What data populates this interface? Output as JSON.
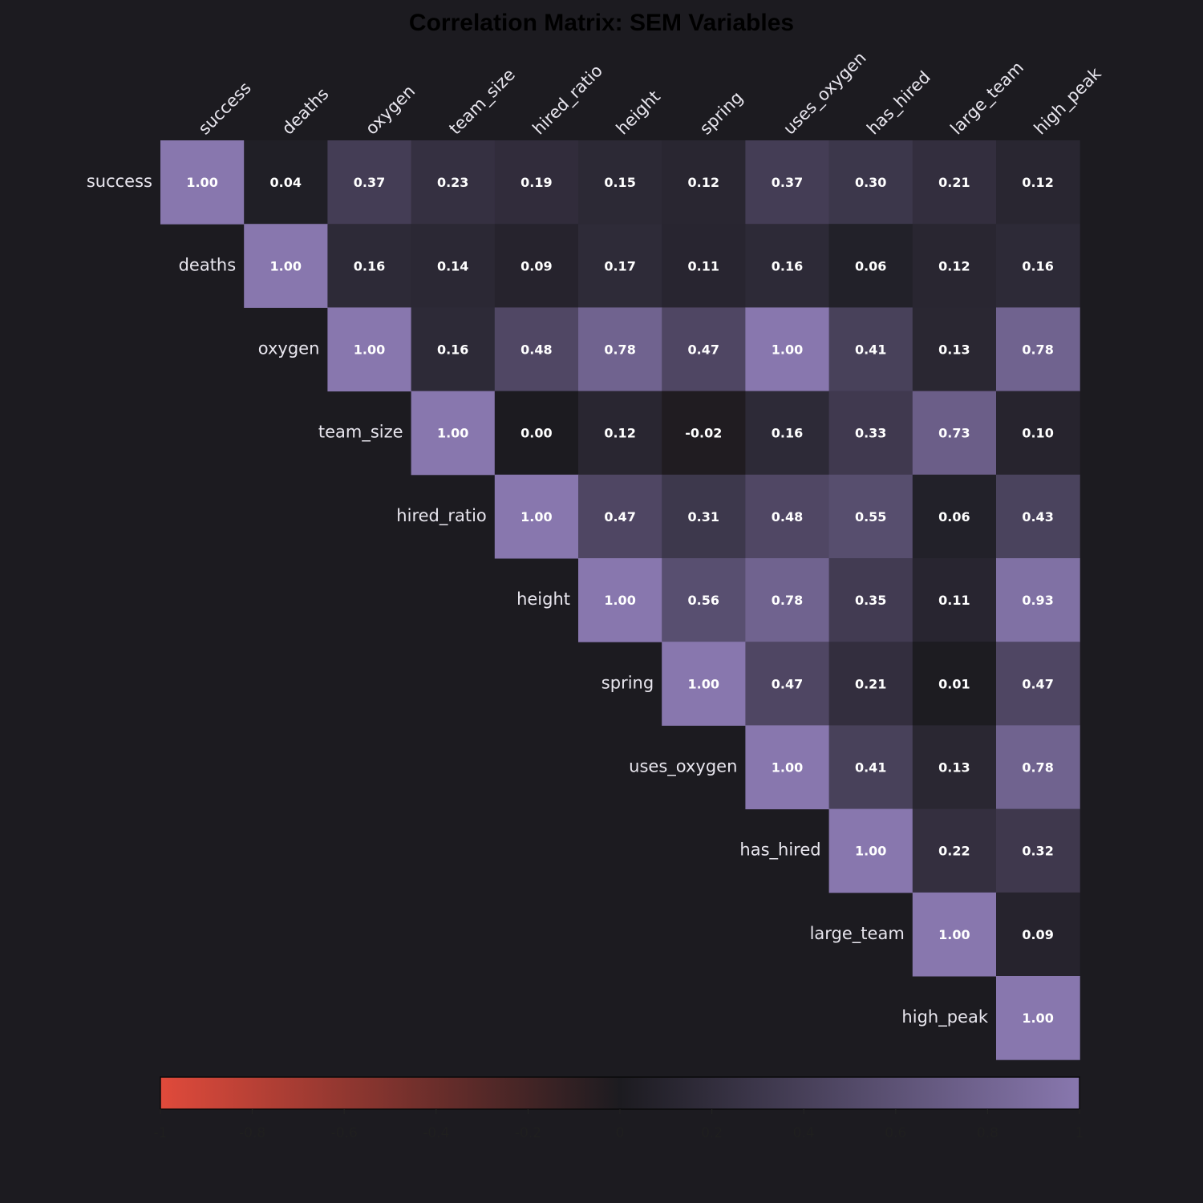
{
  "chart_data": {
    "type": "heatmap",
    "title": "Correlation Matrix: SEM Variables",
    "variables": [
      "success",
      "deaths",
      "oxygen",
      "team_size",
      "hired_ratio",
      "height",
      "spring",
      "uses_oxygen",
      "has_hired",
      "large_team",
      "high_peak"
    ],
    "matrix_upper": [
      [
        "1.00",
        "0.04",
        "0.37",
        "0.23",
        "0.19",
        "0.15",
        "0.12",
        "0.37",
        "0.30",
        "0.21",
        "0.12"
      ],
      [
        null,
        "1.00",
        "0.16",
        "0.14",
        "0.09",
        "0.17",
        "0.11",
        "0.16",
        "0.06",
        "0.12",
        "0.16"
      ],
      [
        null,
        null,
        "1.00",
        "0.16",
        "0.48",
        "0.78",
        "0.47",
        "1.00",
        "0.41",
        "0.13",
        "0.78"
      ],
      [
        null,
        null,
        null,
        "1.00",
        "0.00",
        "0.12",
        "-0.02",
        "0.16",
        "0.33",
        "0.73",
        "0.10"
      ],
      [
        null,
        null,
        null,
        null,
        "1.00",
        "0.47",
        "0.31",
        "0.48",
        "0.55",
        "0.06",
        "0.43"
      ],
      [
        null,
        null,
        null,
        null,
        null,
        "1.00",
        "0.56",
        "0.78",
        "0.35",
        "0.11",
        "0.93"
      ],
      [
        null,
        null,
        null,
        null,
        null,
        null,
        "1.00",
        "0.47",
        "0.21",
        "0.01",
        "0.47"
      ],
      [
        null,
        null,
        null,
        null,
        null,
        null,
        null,
        "1.00",
        "0.41",
        "0.13",
        "0.78"
      ],
      [
        null,
        null,
        null,
        null,
        null,
        null,
        null,
        null,
        "1.00",
        "0.22",
        "0.32"
      ],
      [
        null,
        null,
        null,
        null,
        null,
        null,
        null,
        null,
        null,
        "1.00",
        "0.09"
      ],
      [
        null,
        null,
        null,
        null,
        null,
        null,
        null,
        null,
        null,
        null,
        "1.00"
      ]
    ],
    "colorbar": {
      "range": [
        -1,
        1
      ],
      "ticks": [
        "-1",
        "-0.8",
        "-0.6",
        "-0.4",
        "-0.2",
        "0",
        "0.2",
        "0.4",
        "0.6",
        "0.8",
        "1"
      ],
      "color_negative": "#e04a3b",
      "color_zero": "#1c1b20",
      "color_positive": "#8877ae"
    }
  }
}
